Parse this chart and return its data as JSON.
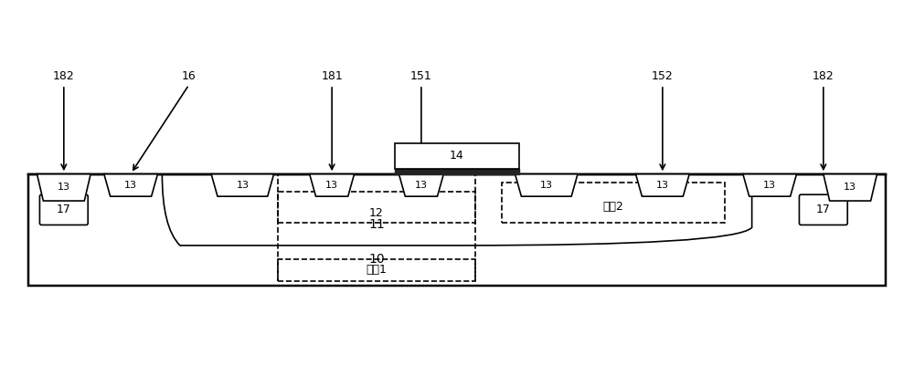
{
  "fig_width": 10.0,
  "fig_height": 4.01,
  "dpi": 100,
  "bg_color": "#ffffff",
  "line_color": "#000000",
  "fill_color": "#f0f0f0",
  "substrate_color": "#e8e8e8",
  "gate_oxide_color": "#000000",
  "labels": {
    "182_left": "182",
    "16": "16",
    "181": "181",
    "151": "151",
    "14": "14",
    "152": "152",
    "182_right": "182",
    "12": "12",
    "11": "11",
    "10": "10",
    "17_left": "17",
    "17_right": "17",
    "region1": "区块1",
    "region2": "区块2",
    "13": "13"
  },
  "arrow_color": "#000000"
}
